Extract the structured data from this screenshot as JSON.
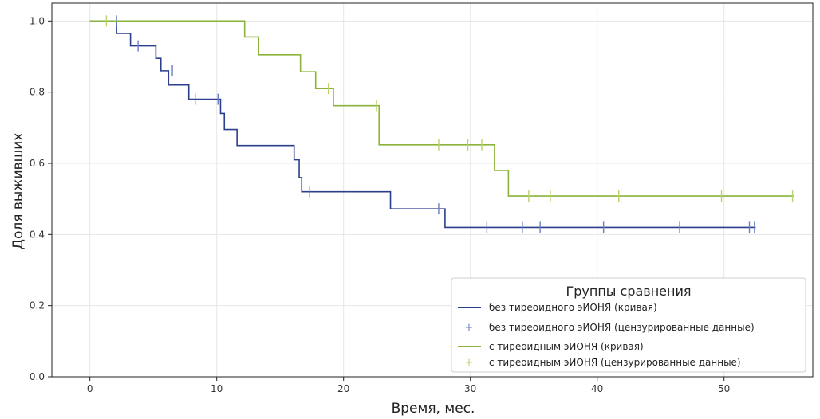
{
  "chart_data": {
    "type": "line",
    "subtype": "kaplan-meier",
    "title": "",
    "xlabel": "Время, мес.",
    "ylabel": "Доля выживших",
    "xlim": [
      -3,
      57
    ],
    "ylim": [
      0,
      1.05
    ],
    "xticks": [
      0,
      10,
      20,
      30,
      40,
      50
    ],
    "yticks": [
      0.0,
      0.2,
      0.4,
      0.6,
      0.8,
      1.0
    ],
    "xtick_labels": [
      "0",
      "10",
      "20",
      "30",
      "40",
      "50"
    ],
    "ytick_labels": [
      "0.0",
      "0.2",
      "0.4",
      "0.6",
      "0.8",
      "1.0"
    ],
    "grid": true,
    "legend": {
      "title": "Группы сравнения",
      "placement": "bottom-right",
      "entries": [
        "без тиреоидного эИОНЯ (кривая)",
        "без тиреоидного эИОНЯ (цензурированные данные)",
        "с тиреоидным эИОНЯ (кривая)",
        "с тиреоидным эИОНЯ (цензурированные данные)"
      ]
    },
    "series": [
      {
        "name": "без тиреоидного эИОНЯ",
        "color": "#2b3f8c",
        "censor_color": "#6a7fc0",
        "steps": [
          [
            0,
            1.0
          ],
          [
            2.1,
            0.965
          ],
          [
            3.2,
            0.93
          ],
          [
            5.2,
            0.895
          ],
          [
            5.6,
            0.86
          ],
          [
            6.2,
            0.82
          ],
          [
            7.8,
            0.78
          ],
          [
            10.3,
            0.74
          ],
          [
            10.6,
            0.695
          ],
          [
            11.6,
            0.65
          ],
          [
            16.1,
            0.61
          ],
          [
            16.5,
            0.56
          ],
          [
            16.7,
            0.52
          ],
          [
            23.7,
            0.472
          ],
          [
            28,
            0.42
          ],
          [
            52.5,
            0.42
          ]
        ],
        "censored": [
          [
            2.1,
            1.0
          ],
          [
            3.8,
            0.93
          ],
          [
            6.5,
            0.86
          ],
          [
            8.3,
            0.78
          ],
          [
            10.1,
            0.78
          ],
          [
            17.3,
            0.52
          ],
          [
            27.5,
            0.472
          ],
          [
            31.3,
            0.42
          ],
          [
            34.1,
            0.42
          ],
          [
            35.5,
            0.42
          ],
          [
            40.5,
            0.42
          ],
          [
            46.5,
            0.42
          ],
          [
            52,
            0.42
          ],
          [
            52.4,
            0.42
          ]
        ]
      },
      {
        "name": "с тиреоидным эИОНЯ",
        "color": "#8bb33a",
        "censor_color": "#b8d36a",
        "steps": [
          [
            0,
            1.0
          ],
          [
            12.2,
            0.955
          ],
          [
            13.3,
            0.905
          ],
          [
            16.6,
            0.857
          ],
          [
            17.8,
            0.81
          ],
          [
            19.2,
            0.762
          ],
          [
            22.8,
            0.652
          ],
          [
            31.9,
            0.58
          ],
          [
            33,
            0.508
          ],
          [
            55.5,
            0.508
          ]
        ],
        "censored": [
          [
            1.3,
            1.0
          ],
          [
            18.8,
            0.81
          ],
          [
            22.6,
            0.762
          ],
          [
            27.5,
            0.652
          ],
          [
            29.8,
            0.652
          ],
          [
            30.9,
            0.652
          ],
          [
            34.6,
            0.508
          ],
          [
            36.3,
            0.508
          ],
          [
            41.7,
            0.508
          ],
          [
            49.8,
            0.508
          ],
          [
            55.4,
            0.508
          ]
        ]
      }
    ]
  }
}
